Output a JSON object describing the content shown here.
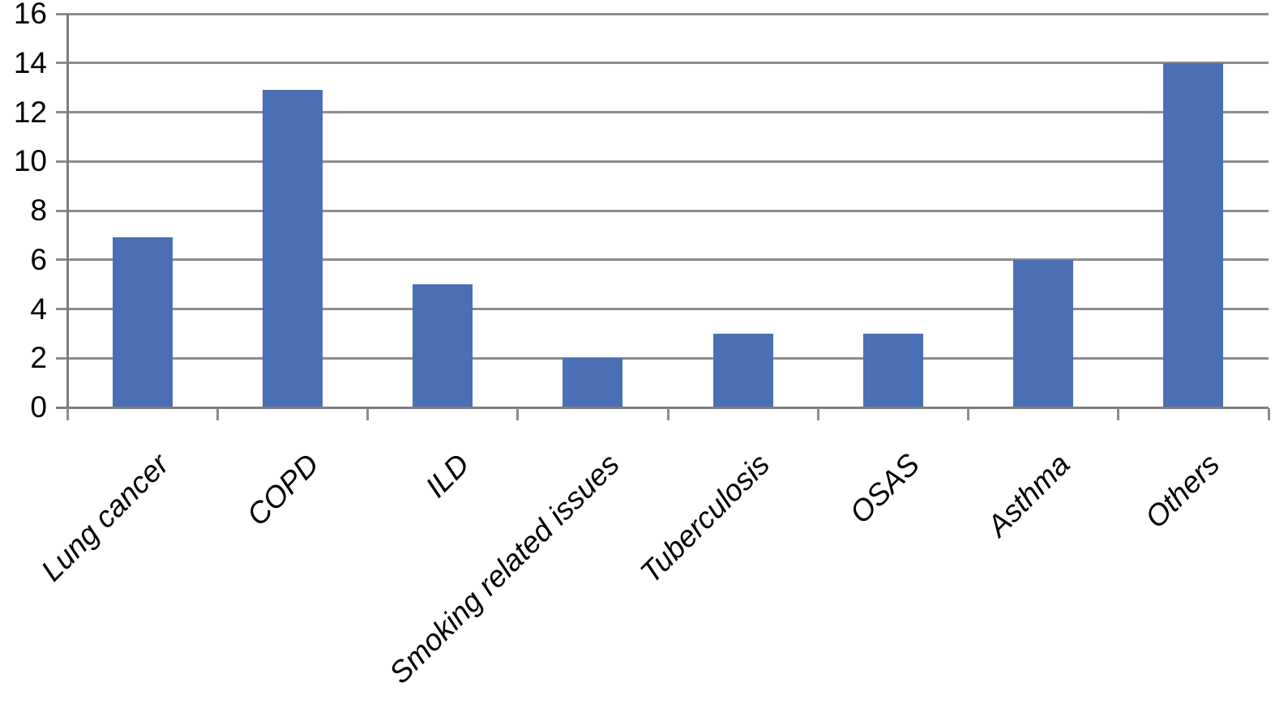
{
  "chart_data": {
    "type": "bar",
    "title": "",
    "xlabel": "",
    "ylabel": "",
    "categories": [
      "Lung cancer",
      "COPD",
      "ILD",
      "Smoking related issues",
      "Tuberculosis",
      "OSAS",
      "Asthma",
      "Others"
    ],
    "values": [
      6.9,
      12.9,
      5,
      2,
      3,
      3,
      6,
      14
    ],
    "series_count": 1,
    "legend": "none",
    "ylim": [
      0,
      16
    ],
    "ytick_step": 2,
    "ytick_labels": [
      "0",
      "2",
      "4",
      "6",
      "8",
      "10",
      "12",
      "14",
      "16"
    ],
    "grid": true,
    "gridlines": "horizontal-every-2",
    "x_label_rotation_deg": 45,
    "x_label_style": "italic",
    "colors": {
      "bar": "#4a6fb5",
      "gridline": "#8c8c8c",
      "axis": "#7d7d7d",
      "text": "#000000",
      "background": "#ffffff"
    }
  }
}
